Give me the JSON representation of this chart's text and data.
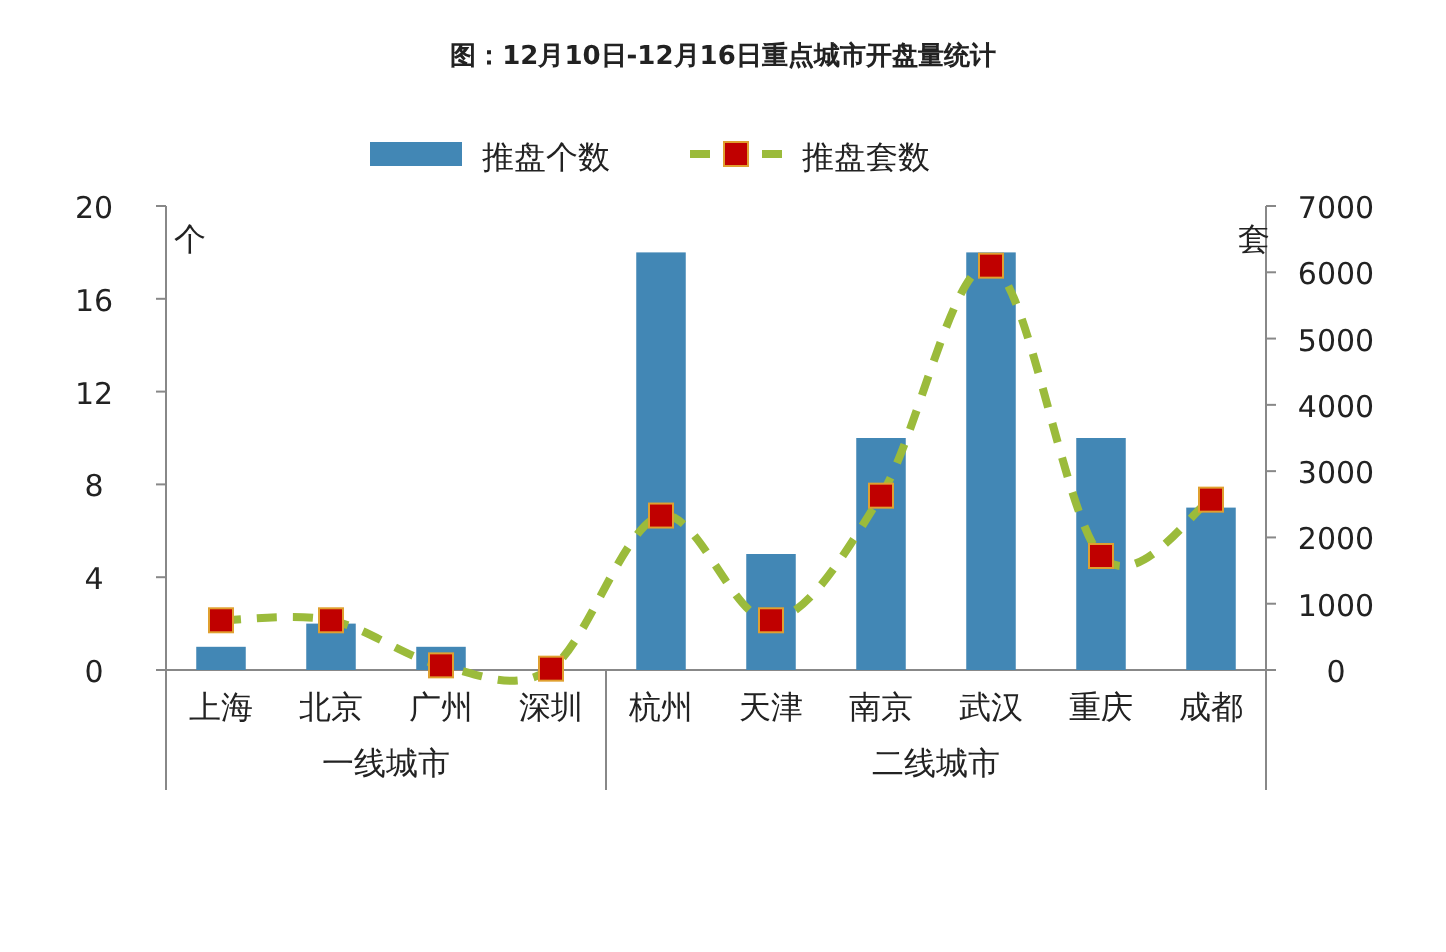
{
  "chart_data": {
    "type": "bar",
    "title": "图：12月10日-12月16日重点城市开盘量统计",
    "ylabel": "个",
    "y2label": "套",
    "categories": [
      "上海",
      "北京",
      "广州",
      "深圳",
      "杭州",
      "天津",
      "南京",
      "武汉",
      "重庆",
      "成都"
    ],
    "series": [
      {
        "name": "推盘个数",
        "color": "#4287b5",
        "values": [
          1,
          2,
          1,
          0,
          18,
          5,
          10,
          18,
          10,
          7
        ]
      },
      {
        "name": "推盘套数",
        "type": "line",
        "axis": "y2",
        "color": "#9bbb3b",
        "marker": "square",
        "line_style": "dashed",
        "values": [
          750,
          750,
          70,
          20,
          2330,
          750,
          2630,
          6100,
          1720,
          2570
        ]
      }
    ],
    "ylim": [
      0,
      20
    ],
    "yticks": [
      0,
      4,
      8,
      12,
      16,
      20
    ],
    "y2lim": [
      0,
      7000
    ],
    "y2ticks": [
      0,
      1000,
      2000,
      3000,
      4000,
      5000,
      6000,
      7000
    ],
    "legend": "top",
    "grid": false,
    "annotations": [
      "一线城市",
      "二线城市"
    ]
  }
}
